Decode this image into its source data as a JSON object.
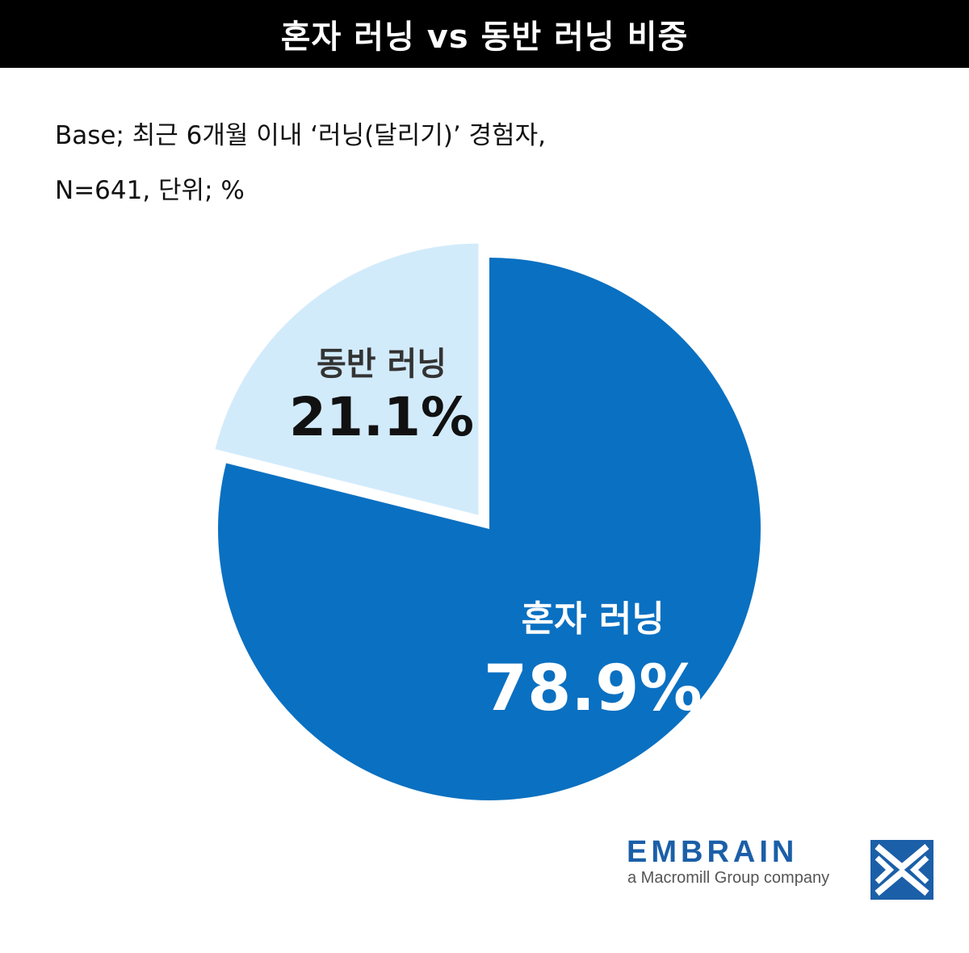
{
  "header": {
    "title": "혼자 러닝 vs 동반 러닝 비중"
  },
  "base": {
    "line1": "Base; 최근 6개월 이내 ‘러닝(달리기)’ 경험자,",
    "line2": "N=641, 단위; %"
  },
  "chart_data": {
    "type": "pie",
    "unit": "%",
    "slices": [
      {
        "name": "동반 러닝",
        "value": 21.1,
        "label": "21.1%",
        "color": "#d2ebfb",
        "exploded": true
      },
      {
        "name": "혼자 러닝",
        "value": 78.9,
        "label": "78.9%",
        "color": "#0a70c1",
        "exploded": false
      }
    ]
  },
  "logo": {
    "name": "EMBRAIN",
    "tagline": "a Macromill Group company",
    "color": "#1b5fa8",
    "icon": "embrain-mark-icon"
  }
}
